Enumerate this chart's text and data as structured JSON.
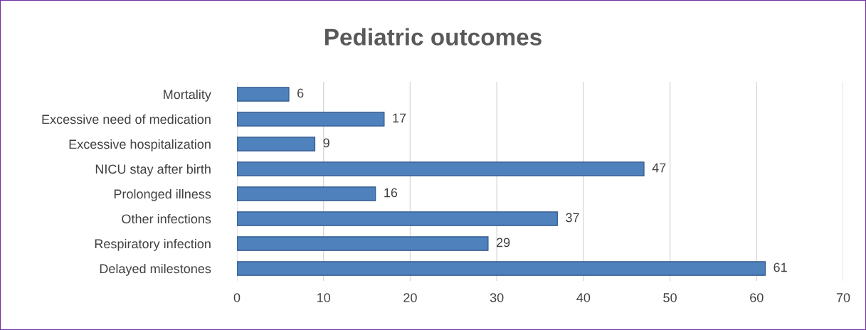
{
  "chart_data": {
    "type": "bar",
    "orientation": "horizontal",
    "title": "Pediatric outcomes",
    "categories": [
      "Mortality",
      "Excessive need of medication",
      "Excessive hospitalization",
      "NICU stay after birth",
      "Prolonged illness",
      "Other infections",
      "Respiratory infection",
      "Delayed milestones"
    ],
    "values": [
      6,
      17,
      9,
      47,
      16,
      37,
      29,
      61
    ],
    "color": "#4f81bd",
    "data_labels": true,
    "xlim": [
      0,
      70
    ],
    "xticks": [
      0,
      10,
      20,
      30,
      40,
      50,
      60,
      70
    ],
    "grid": "x",
    "legend": false
  }
}
